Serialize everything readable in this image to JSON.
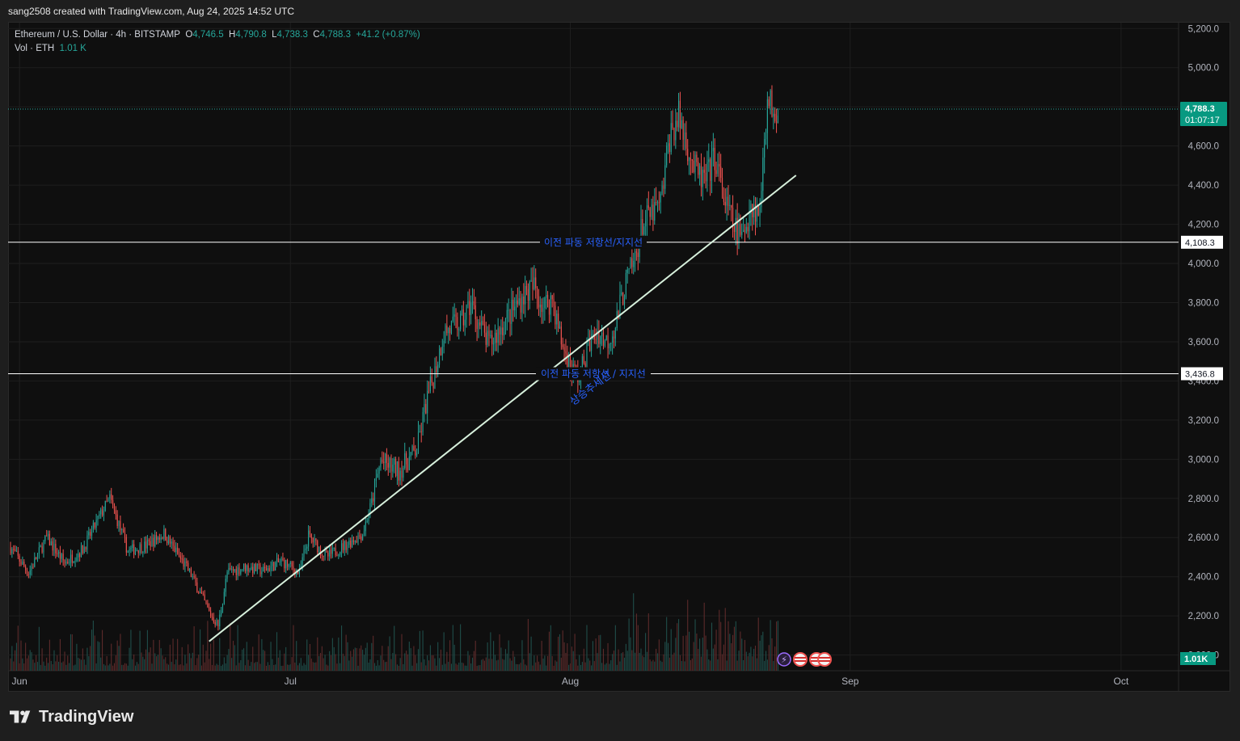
{
  "header": {
    "credit": "sang2508 created with TradingView.com, Aug 24, 2025 14:52 UTC"
  },
  "legend": {
    "symbol": "Ethereum / U.S. Dollar · 4h · BITSTAMP",
    "open_label": "O",
    "open": "4,746.5",
    "high_label": "H",
    "high": "4,790.8",
    "low_label": "L",
    "low": "4,738.3",
    "close_label": "C",
    "close": "4,788.3",
    "change": "+41.2 (+0.87%)",
    "vol_label": "Vol · ETH",
    "vol": "1.01 K"
  },
  "price_axis": {
    "ticks": [
      "5,200.0",
      "5,000.0",
      "4,800.0",
      "4,600.0",
      "4,400.0",
      "4,200.0",
      "4,000.0",
      "3,800.0",
      "3,600.0",
      "3,400.0",
      "3,200.0",
      "3,000.0",
      "2,800.0",
      "2,600.0",
      "2,400.0",
      "2,200.0",
      "2,000.0"
    ],
    "tick_values": [
      5200,
      5000,
      4800,
      4600,
      4400,
      4200,
      4000,
      3800,
      3600,
      3400,
      3200,
      3000,
      2800,
      2600,
      2400,
      2200,
      2000
    ],
    "last_price": "4,788.3",
    "countdown": "01:07:17",
    "level_upper": "4,108.3",
    "level_lower": "3,436.8",
    "volume_badge": "1.01K"
  },
  "time_axis": {
    "labels": [
      "Jun",
      "Jul",
      "Aug",
      "Sep",
      "Oct"
    ]
  },
  "annotations": {
    "upper_line_text": "이전 파동 저항선/지지선",
    "lower_line_text": "이전 파동 저항선 / 지지선",
    "trendline_text": "상승추세선"
  },
  "footer": {
    "brand": "TradingView"
  },
  "colors": {
    "up": "#26a69a",
    "down": "#ef5350",
    "annotation_text": "#2962ff",
    "trendline": "#d7f0dc",
    "horizontal_line": "#ffffff",
    "background": "#0f0f0f"
  },
  "chart_data": {
    "type": "candlestick",
    "title": "Ethereum / U.S. Dollar · 4h · BITSTAMP",
    "ylim": [
      1920,
      5230
    ],
    "horizontal_levels": [
      4108.3,
      3436.8
    ],
    "trendline": [
      {
        "date": "2025-06-22",
        "price": 2070
      },
      {
        "date": "2025-08-26",
        "price": 4450
      }
    ],
    "close_path": [
      {
        "date": "2025-05-31",
        "price": 2550
      },
      {
        "date": "2025-06-02",
        "price": 2420
      },
      {
        "date": "2025-06-04",
        "price": 2600
      },
      {
        "date": "2025-06-06",
        "price": 2470
      },
      {
        "date": "2025-06-08",
        "price": 2540
      },
      {
        "date": "2025-06-10",
        "price": 2720
      },
      {
        "date": "2025-06-11",
        "price": 2800
      },
      {
        "date": "2025-06-13",
        "price": 2530
      },
      {
        "date": "2025-06-15",
        "price": 2560
      },
      {
        "date": "2025-06-17",
        "price": 2620
      },
      {
        "date": "2025-06-18",
        "price": 2550
      },
      {
        "date": "2025-06-20",
        "price": 2410
      },
      {
        "date": "2025-06-22",
        "price": 2220
      },
      {
        "date": "2025-06-23",
        "price": 2150
      },
      {
        "date": "2025-06-24",
        "price": 2420
      },
      {
        "date": "2025-06-26",
        "price": 2450
      },
      {
        "date": "2025-06-28",
        "price": 2430
      },
      {
        "date": "2025-06-30",
        "price": 2480
      },
      {
        "date": "2025-07-02",
        "price": 2420
      },
      {
        "date": "2025-07-03",
        "price": 2610
      },
      {
        "date": "2025-07-05",
        "price": 2500
      },
      {
        "date": "2025-07-07",
        "price": 2560
      },
      {
        "date": "2025-07-09",
        "price": 2620
      },
      {
        "date": "2025-07-10",
        "price": 2780
      },
      {
        "date": "2025-07-11",
        "price": 2990
      },
      {
        "date": "2025-07-13",
        "price": 2940
      },
      {
        "date": "2025-07-15",
        "price": 3050
      },
      {
        "date": "2025-07-16",
        "price": 3280
      },
      {
        "date": "2025-07-17",
        "price": 3450
      },
      {
        "date": "2025-07-18",
        "price": 3650
      },
      {
        "date": "2025-07-20",
        "price": 3700
      },
      {
        "date": "2025-07-21",
        "price": 3800
      },
      {
        "date": "2025-07-22",
        "price": 3680
      },
      {
        "date": "2025-07-23",
        "price": 3580
      },
      {
        "date": "2025-07-25",
        "price": 3720
      },
      {
        "date": "2025-07-27",
        "price": 3850
      },
      {
        "date": "2025-07-28",
        "price": 3880
      },
      {
        "date": "2025-07-29",
        "price": 3780
      },
      {
        "date": "2025-07-30",
        "price": 3820
      },
      {
        "date": "2025-07-31",
        "price": 3600
      },
      {
        "date": "2025-08-01",
        "price": 3470
      },
      {
        "date": "2025-08-02",
        "price": 3420
      },
      {
        "date": "2025-08-03",
        "price": 3580
      },
      {
        "date": "2025-08-04",
        "price": 3650
      },
      {
        "date": "2025-08-05",
        "price": 3600
      },
      {
        "date": "2025-08-06",
        "price": 3680
      },
      {
        "date": "2025-08-07",
        "price": 3880
      },
      {
        "date": "2025-08-08",
        "price": 4000
      },
      {
        "date": "2025-08-09",
        "price": 4200
      },
      {
        "date": "2025-08-10",
        "price": 4250
      },
      {
        "date": "2025-08-11",
        "price": 4300
      },
      {
        "date": "2025-08-12",
        "price": 4650
      },
      {
        "date": "2025-08-13",
        "price": 4750
      },
      {
        "date": "2025-08-14",
        "price": 4600
      },
      {
        "date": "2025-08-15",
        "price": 4450
      },
      {
        "date": "2025-08-16",
        "price": 4420
      },
      {
        "date": "2025-08-17",
        "price": 4550
      },
      {
        "date": "2025-08-18",
        "price": 4330
      },
      {
        "date": "2025-08-19",
        "price": 4200
      },
      {
        "date": "2025-08-20",
        "price": 4120
      },
      {
        "date": "2025-08-21",
        "price": 4300
      },
      {
        "date": "2025-08-22",
        "price": 4250
      },
      {
        "date": "2025-08-22T12:00",
        "price": 4700
      },
      {
        "date": "2025-08-23",
        "price": 4820
      },
      {
        "date": "2025-08-24",
        "price": 4788.3
      }
    ]
  }
}
